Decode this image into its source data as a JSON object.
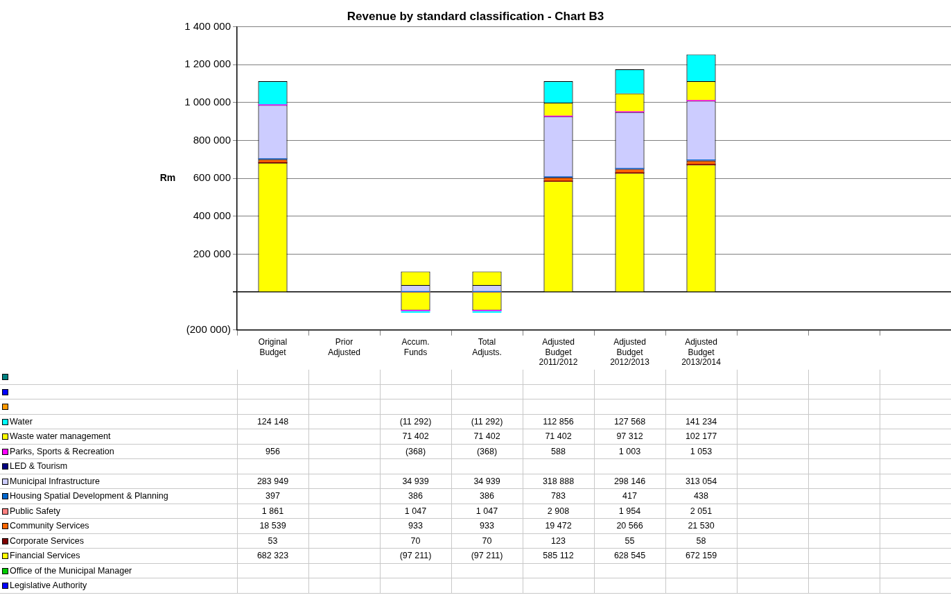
{
  "chart_data": {
    "type": "bar",
    "title": "Revenue by standard classification - Chart B3",
    "ylabel": "Rm",
    "stacked": true,
    "grid": "y",
    "legend": "bottom",
    "categories": [
      "Original Budget",
      "Prior Adjusted",
      "Accum. Funds",
      "Total Adjusts.",
      "Adjusted Budget 2011/2012",
      "Adjusted Budget 2012/2013",
      "Adjusted Budget 2013/2014",
      null,
      null,
      null
    ],
    "ylim": [
      -200000,
      1400000
    ],
    "yticks": [
      {
        "value": -200000,
        "label": "(200 000)"
      },
      {
        "value": 0,
        "label": null
      },
      {
        "value": 200000,
        "label": "200 000"
      },
      {
        "value": 400000,
        "label": "400 000"
      },
      {
        "value": 600000,
        "label": "600 000"
      },
      {
        "value": 800000,
        "label": "800 000"
      },
      {
        "value": 1000000,
        "label": "1 000 000"
      },
      {
        "value": 1200000,
        "label": "1 200 000"
      },
      {
        "value": 1400000,
        "label": "1 400 000"
      }
    ],
    "series": [
      {
        "name": "Legislative Authority",
        "color": "#0000ff",
        "values": [
          null,
          null,
          null,
          null,
          null,
          null,
          null,
          null,
          null,
          null
        ]
      },
      {
        "name": "Office of the Municipal Manager",
        "color": "#00cc00",
        "values": [
          null,
          null,
          null,
          null,
          null,
          null,
          null,
          null,
          null,
          null
        ]
      },
      {
        "name": "Financial Services",
        "color": "#ffff00",
        "values": [
          682323,
          null,
          -97211,
          -97211,
          585112,
          628545,
          672159,
          null,
          null,
          null
        ],
        "value_labels": [
          "682 323",
          null,
          "(97 211)",
          "(97 211)",
          "585 112",
          "628 545",
          "672 159",
          null,
          null,
          null
        ]
      },
      {
        "name": "Corporate Services",
        "color": "#800000",
        "values": [
          53,
          null,
          70,
          70,
          123,
          55,
          58,
          null,
          null,
          null
        ],
        "value_labels": [
          "53",
          null,
          "70",
          "70",
          "123",
          "55",
          "58",
          null,
          null,
          null
        ]
      },
      {
        "name": "Community Services",
        "color": "#ff6600",
        "values": [
          18539,
          null,
          933,
          933,
          19472,
          20566,
          21530,
          null,
          null,
          null
        ],
        "value_labels": [
          "18 539",
          null,
          "933",
          "933",
          "19 472",
          "20 566",
          "21 530",
          null,
          null,
          null
        ]
      },
      {
        "name": "Public Safety",
        "color": "#ff8080",
        "values": [
          1861,
          null,
          1047,
          1047,
          2908,
          1954,
          2051,
          null,
          null,
          null
        ],
        "value_labels": [
          "1 861",
          null,
          "1 047",
          "1 047",
          "2 908",
          "1 954",
          "2 051",
          null,
          null,
          null
        ]
      },
      {
        "name": "Housing Spatial Development & Planning",
        "color": "#0066cc",
        "values": [
          397,
          null,
          386,
          386,
          783,
          417,
          438,
          null,
          null,
          null
        ],
        "value_labels": [
          "397",
          null,
          "386",
          "386",
          "783",
          "417",
          "438",
          null,
          null,
          null
        ]
      },
      {
        "name": "Municipal Infrastructure",
        "color": "#ccccff",
        "values": [
          283949,
          null,
          34939,
          34939,
          318888,
          298146,
          313054,
          null,
          null,
          null
        ],
        "value_labels": [
          "283 949",
          null,
          "34 939",
          "34 939",
          "318 888",
          "298 146",
          "313 054",
          null,
          null,
          null
        ]
      },
      {
        "name": "LED & Tourism",
        "color": "#000080",
        "values": [
          null,
          null,
          null,
          null,
          null,
          null,
          null,
          null,
          null,
          null
        ]
      },
      {
        "name": "Parks, Sports & Recreation",
        "color": "#ff00ff",
        "values": [
          956,
          null,
          -368,
          -368,
          588,
          1003,
          1053,
          null,
          null,
          null
        ],
        "value_labels": [
          "956",
          null,
          "(368)",
          "(368)",
          "588",
          "1 003",
          "1 053",
          null,
          null,
          null
        ]
      },
      {
        "name": "Waste water management",
        "color": "#ffff00",
        "values": [
          null,
          null,
          71402,
          71402,
          71402,
          97312,
          102177,
          null,
          null,
          null
        ],
        "value_labels": [
          null,
          null,
          "71 402",
          "71 402",
          "71 402",
          "97 312",
          "102 177",
          null,
          null,
          null
        ]
      },
      {
        "name": "Water",
        "color": "#00ffff",
        "values": [
          124148,
          null,
          -11292,
          -11292,
          112856,
          127568,
          141234,
          null,
          null,
          null
        ],
        "value_labels": [
          "124 148",
          null,
          "(11 292)",
          "(11 292)",
          "112 856",
          "127 568",
          "141 234",
          null,
          null,
          null
        ]
      },
      {
        "color": "#ff9900",
        "values": [
          null,
          null,
          null,
          null,
          null,
          null,
          null,
          null,
          null,
          null
        ]
      },
      {
        "color": "#0000ff",
        "values": [
          null,
          null,
          null,
          null,
          null,
          null,
          null,
          null,
          null,
          null
        ]
      },
      {
        "color": "#008080",
        "values": [
          null,
          null,
          null,
          null,
          null,
          null,
          null,
          null,
          null,
          null
        ]
      }
    ]
  }
}
